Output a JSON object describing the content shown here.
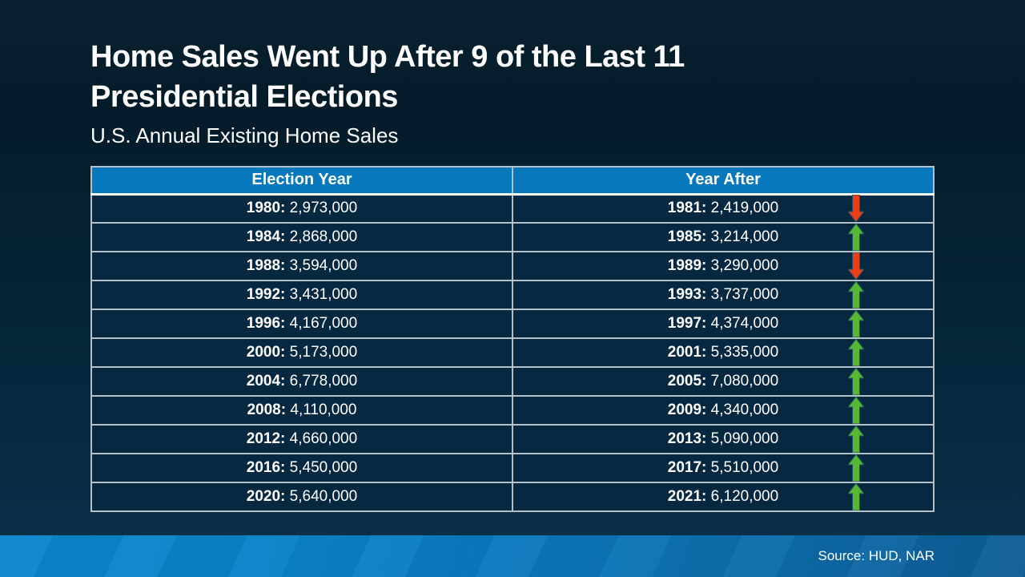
{
  "slide": {
    "title": "Home Sales Went Up After 9 of the Last 11 Presidential Elections",
    "subtitle": "U.S. Annual Existing Home Sales",
    "source": "Source: HUD, NAR"
  },
  "colors": {
    "background_top": "#0a2230",
    "background_bottom": "#0b3149",
    "header_blue": "#0778bc",
    "row_navy": "#062840",
    "divider_grey": "#b6c0c8",
    "header_underline": "#ffffff",
    "up_arrow_green": "#56b731",
    "down_arrow_red": "#ea3e14",
    "footer_blue_left": "#0c86ce",
    "footer_blue_right": "#0e5c95",
    "text_white": "#ffffff"
  },
  "chart_data": {
    "type": "table",
    "title": "Home Sales Went Up After 9 of the Last 11 Presidential Elections",
    "subtitle": "U.S. Annual Existing Home Sales",
    "columns": [
      "Election Year",
      "Year After"
    ],
    "rows": [
      {
        "election_year": "1980",
        "election_sales": "2,973,000",
        "year_after": "1981",
        "year_after_sales": "2,419,000",
        "direction": "down"
      },
      {
        "election_year": "1984",
        "election_sales": "2,868,000",
        "year_after": "1985",
        "year_after_sales": "3,214,000",
        "direction": "up"
      },
      {
        "election_year": "1988",
        "election_sales": "3,594,000",
        "year_after": "1989",
        "year_after_sales": "3,290,000",
        "direction": "down"
      },
      {
        "election_year": "1992",
        "election_sales": "3,431,000",
        "year_after": "1993",
        "year_after_sales": "3,737,000",
        "direction": "up"
      },
      {
        "election_year": "1996",
        "election_sales": "4,167,000",
        "year_after": "1997",
        "year_after_sales": "4,374,000",
        "direction": "up"
      },
      {
        "election_year": "2000",
        "election_sales": "5,173,000",
        "year_after": "2001",
        "year_after_sales": "5,335,000",
        "direction": "up"
      },
      {
        "election_year": "2004",
        "election_sales": "6,778,000",
        "year_after": "2005",
        "year_after_sales": "7,080,000",
        "direction": "up"
      },
      {
        "election_year": "2008",
        "election_sales": "4,110,000",
        "year_after": "2009",
        "year_after_sales": "4,340,000",
        "direction": "up"
      },
      {
        "election_year": "2012",
        "election_sales": "4,660,000",
        "year_after": "2013",
        "year_after_sales": "5,090,000",
        "direction": "up"
      },
      {
        "election_year": "2016",
        "election_sales": "5,450,000",
        "year_after": "2017",
        "year_after_sales": "5,510,000",
        "direction": "up"
      },
      {
        "election_year": "2020",
        "election_sales": "5,640,000",
        "year_after": "2021",
        "year_after_sales": "6,120,000",
        "direction": "up"
      }
    ],
    "source": "Source: HUD, NAR"
  }
}
